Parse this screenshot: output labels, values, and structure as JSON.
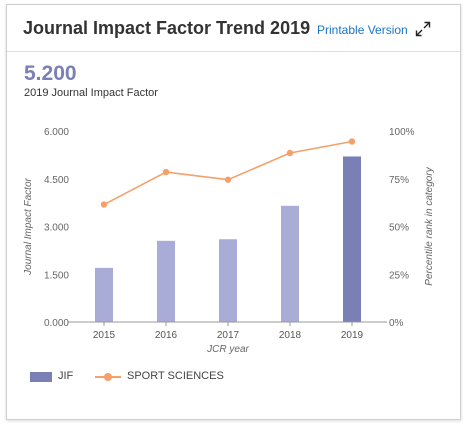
{
  "header": {
    "title": "Journal Impact Factor Trend 2019",
    "printable_label": "Printable Version",
    "expand_icon": "expand-arrows-icon"
  },
  "kpi": {
    "value": "5.200",
    "label": "2019 Journal Impact Factor"
  },
  "legend": {
    "bar_label": "JIF",
    "line_label": "SPORT SCIENCES"
  },
  "colors": {
    "bar": "#a9acd6",
    "bar_highlight": "#7a7fb5",
    "line": "#f4a06b",
    "axis": "#999999",
    "grid": "#e6e6e6",
    "kpi": "#7a7fb5",
    "link": "#1a73c6"
  },
  "chart_data": {
    "type": "bar",
    "categories": [
      "2015",
      "2016",
      "2017",
      "2018",
      "2019"
    ],
    "series": [
      {
        "name": "JIF",
        "type": "bar",
        "axis": "left",
        "values": [
          1.7,
          2.55,
          2.6,
          3.65,
          5.2
        ]
      },
      {
        "name": "SPORT SCIENCES",
        "type": "line",
        "axis": "right",
        "values": [
          61.5,
          78.5,
          74.5,
          88.5,
          94.5
        ]
      }
    ],
    "xlabel": "JCR year",
    "ylabel": "Journal Impact Factor",
    "y2label": "Percentile rank in category",
    "ylim": [
      0,
      6
    ],
    "y2lim": [
      0,
      100
    ],
    "yticks": [
      "0.000",
      "1.500",
      "3.000",
      "4.500",
      "6.000"
    ],
    "y2ticks": [
      "0%",
      "25%",
      "50%",
      "75%",
      "100%"
    ],
    "highlight_category": "2019",
    "legend_position": "bottom-left",
    "grid": false
  }
}
